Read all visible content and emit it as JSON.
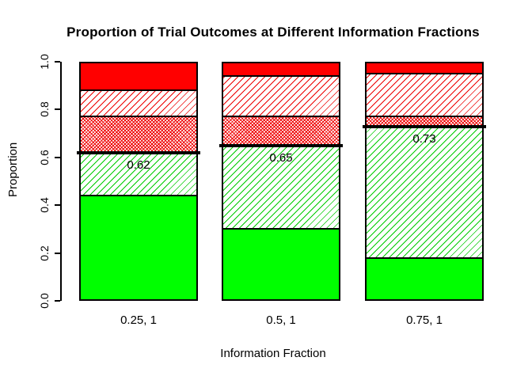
{
  "chart_data": {
    "type": "bar",
    "stacked": true,
    "title": "Proportion of Trial Outcomes at Different Information Fractions",
    "xlabel": "Information Fraction",
    "ylabel": "Proportion",
    "ylim": [
      0,
      1
    ],
    "grid": false,
    "legend": "none",
    "background_color": "#FFFFFF",
    "ytick_labels": [
      "0.0",
      "0.2",
      "0.4",
      "0.6",
      "0.8",
      "1.0"
    ],
    "categories": [
      "0.25, 1",
      "0.5, 1",
      "0.75, 1"
    ],
    "series": [
      {
        "name": "solid-green",
        "pattern": "solid",
        "color": "#00FF00",
        "values": [
          0.44,
          0.3,
          0.18
        ]
      },
      {
        "name": "green-diagonal-hatch",
        "pattern": "hatch",
        "color": "#00CC00",
        "values": [
          0.18,
          0.35,
          0.55
        ]
      },
      {
        "name": "red-dense-crosshatch",
        "pattern": "crosshatch",
        "color": "#EE0000",
        "values": [
          0.15,
          0.12,
          0.04
        ]
      },
      {
        "name": "red-diagonal-hatch",
        "pattern": "hatch",
        "color": "#EE0000",
        "values": [
          0.11,
          0.17,
          0.18
        ]
      },
      {
        "name": "solid-red",
        "pattern": "solid",
        "color": "#FF0000",
        "values": [
          0.12,
          0.06,
          0.05
        ]
      }
    ],
    "threshold_lines": {
      "color": "#000000",
      "values": [
        0.62,
        0.65,
        0.73
      ],
      "labels": [
        "0.62",
        "0.65",
        "0.73"
      ]
    }
  }
}
